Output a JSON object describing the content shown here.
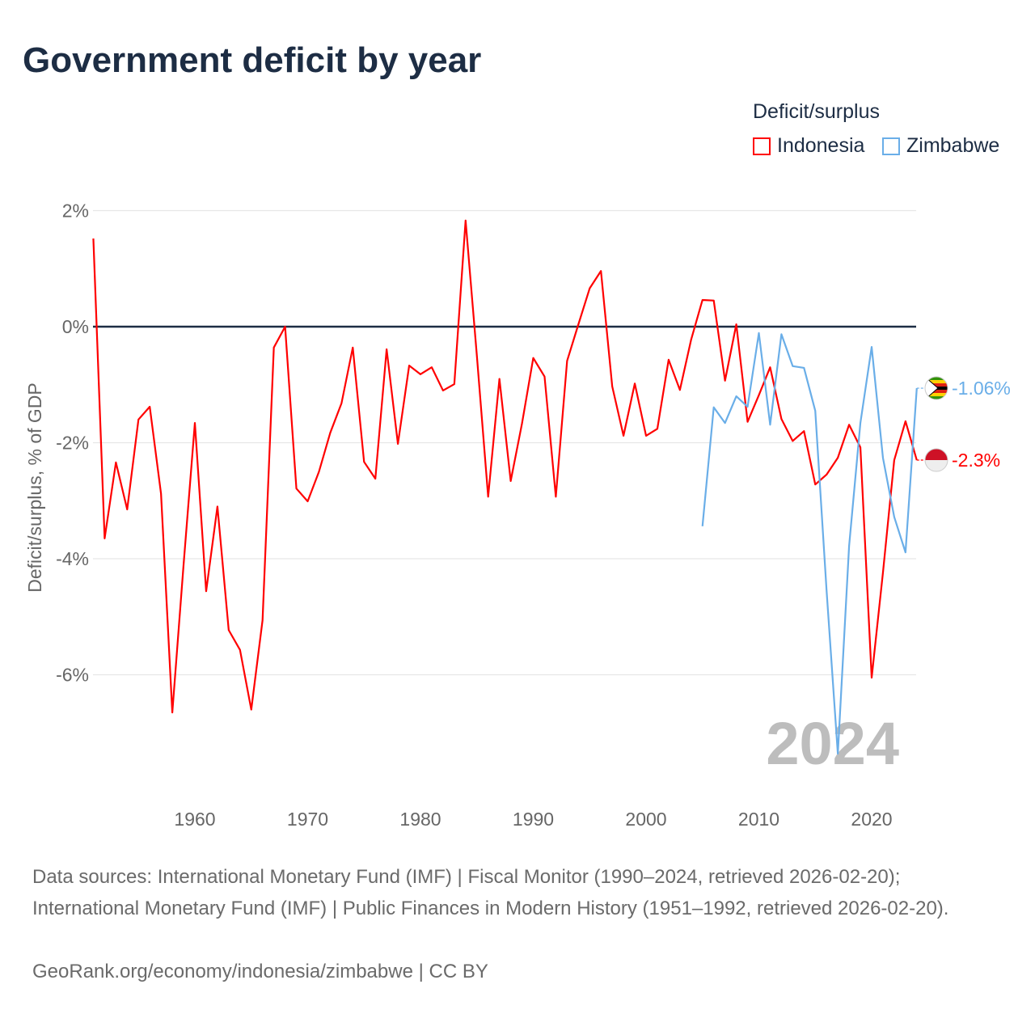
{
  "title": "Government deficit by year",
  "legend": {
    "title": "Deficit/surplus",
    "items": [
      {
        "name": "Indonesia",
        "color": "#ff0000"
      },
      {
        "name": "Zimbabwe",
        "color": "#6aaee8"
      }
    ]
  },
  "chart_data": {
    "type": "line",
    "title": "Government deficit by year",
    "xlabel": "",
    "ylabel": "Deficit/surplus, % of GDP",
    "xlim": [
      1951,
      2024
    ],
    "ylim": [
      -7.8,
      2.2
    ],
    "xticks": [
      1960,
      1970,
      1980,
      1990,
      2000,
      2010,
      2020
    ],
    "xtick_labels": [
      "1960",
      "1970",
      "1980",
      "1990",
      "2000",
      "2010",
      "2020"
    ],
    "yticks": [
      2,
      0,
      -2,
      -4,
      -6
    ],
    "ytick_labels": [
      "2%",
      "0%",
      "-2%",
      "-4%",
      "-6%"
    ],
    "grid": true,
    "legend_position": "top-right",
    "year_watermark": "2024",
    "series": [
      {
        "name": "Indonesia",
        "color": "#ff0000",
        "end_label": "-2.3%",
        "start_year": 1951,
        "values": [
          1.52,
          -3.65,
          -2.34,
          -3.15,
          -1.6,
          -1.38,
          -2.88,
          -6.65,
          -4.1,
          -1.66,
          -4.56,
          -3.1,
          -5.23,
          -5.57,
          -6.6,
          -5.06,
          -0.36,
          0,
          -2.79,
          -3.01,
          -2.5,
          -1.83,
          -1.32,
          -0.36,
          -2.33,
          -2.62,
          -0.39,
          -2.02,
          -0.67,
          -0.82,
          -0.7,
          -1.1,
          -0.99,
          1.83,
          -0.5,
          -2.93,
          -0.9,
          -2.66,
          -1.67,
          -0.54,
          -0.86,
          -2.93,
          -0.59,
          0.04,
          0.66,
          0.96,
          -1.03,
          -1.88,
          -0.98,
          -1.88,
          -1.76,
          -0.57,
          -1.09,
          -0.22,
          0.46,
          0.45,
          -0.93,
          0.04,
          -1.64,
          -1.18,
          -0.7,
          -1.59,
          -1.97,
          -1.8,
          -2.72,
          -2.55,
          -2.26,
          -1.69,
          -2.08,
          -6.05,
          -4.24,
          -2.3,
          -1.63,
          -2.3
        ]
      },
      {
        "name": "Zimbabwe",
        "color": "#6aaee8",
        "end_label": "-1.06%",
        "start_year": 2005,
        "values": [
          -3.44,
          -1.39,
          -1.66,
          -1.2,
          -1.38,
          -0.11,
          -1.69,
          -0.13,
          -0.68,
          -0.71,
          -1.45,
          -4.54,
          -7.36,
          -3.78,
          -1.66,
          -0.35,
          -2.26,
          -3.28,
          -3.89,
          -1.06
        ]
      }
    ]
  },
  "footer": {
    "sources": "Data sources: International Monetary Fund (IMF) | Fiscal Monitor (1990–2024, retrieved 2026-02-20); International Monetary Fund (IMF) | Public Finances in Modern History (1951–1992, retrieved 2026-02-20).",
    "credit": "GeoRank.org/economy/indonesia/zimbabwe | CC BY"
  }
}
